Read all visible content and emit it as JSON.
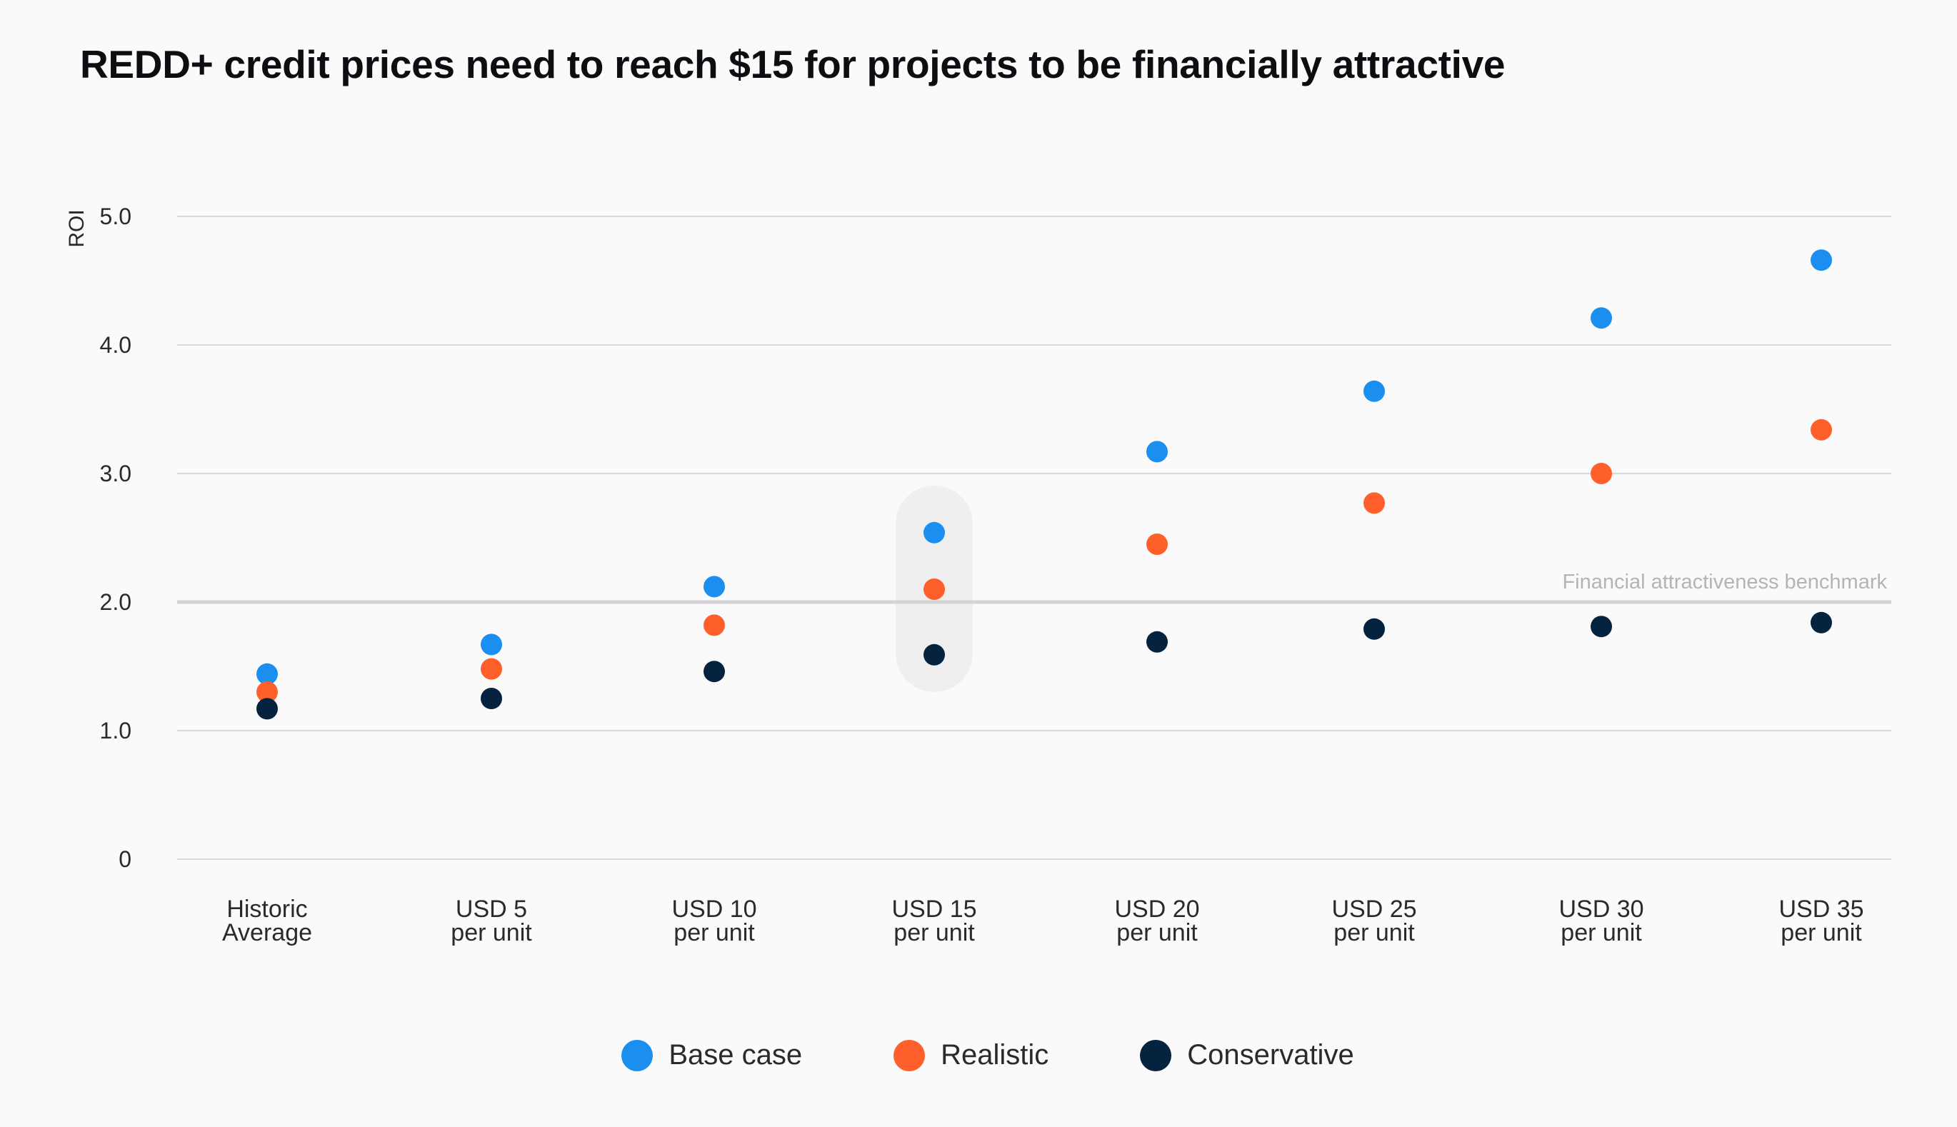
{
  "title": "REDD+ credit prices need to reach $15 for projects to be financially attractive",
  "chart_data": {
    "type": "scatter",
    "title": "REDD+ credit prices need to reach $15 for projects to be financially attractive",
    "xlabel": "",
    "ylabel": "ROI",
    "ylim": [
      0,
      5
    ],
    "yticks": [
      {
        "value": 0,
        "label": "0"
      },
      {
        "value": 1,
        "label": "1.0"
      },
      {
        "value": 2,
        "label": "2.0"
      },
      {
        "value": 3,
        "label": "3.0"
      },
      {
        "value": 4,
        "label": "4.0"
      },
      {
        "value": 5,
        "label": "5.0"
      }
    ],
    "grid": true,
    "categories": [
      [
        "Historic",
        "Average"
      ],
      [
        "USD 5",
        "per unit"
      ],
      [
        "USD 10",
        "per unit"
      ],
      [
        "USD 15",
        "per unit"
      ],
      [
        "USD 20",
        "per unit"
      ],
      [
        "USD 25",
        "per unit"
      ],
      [
        "USD 30",
        "per unit"
      ],
      [
        "USD 35",
        "per unit"
      ]
    ],
    "highlight_category_index": 3,
    "benchmark": {
      "value": 2.0,
      "label": "Financial attractiveness benchmark"
    },
    "series": [
      {
        "name": "Base case",
        "color": "#1a8ff0",
        "values": [
          1.44,
          1.67,
          2.12,
          2.54,
          3.17,
          3.64,
          4.21,
          4.66
        ]
      },
      {
        "name": "Realistic",
        "color": "#ff5f2a",
        "values": [
          1.3,
          1.48,
          1.82,
          2.1,
          2.45,
          2.77,
          3.0,
          3.34
        ]
      },
      {
        "name": "Conservative",
        "color": "#05233f",
        "values": [
          1.17,
          1.25,
          1.46,
          1.59,
          1.69,
          1.79,
          1.81,
          1.84
        ]
      }
    ],
    "legend_position": "bottom-center"
  }
}
